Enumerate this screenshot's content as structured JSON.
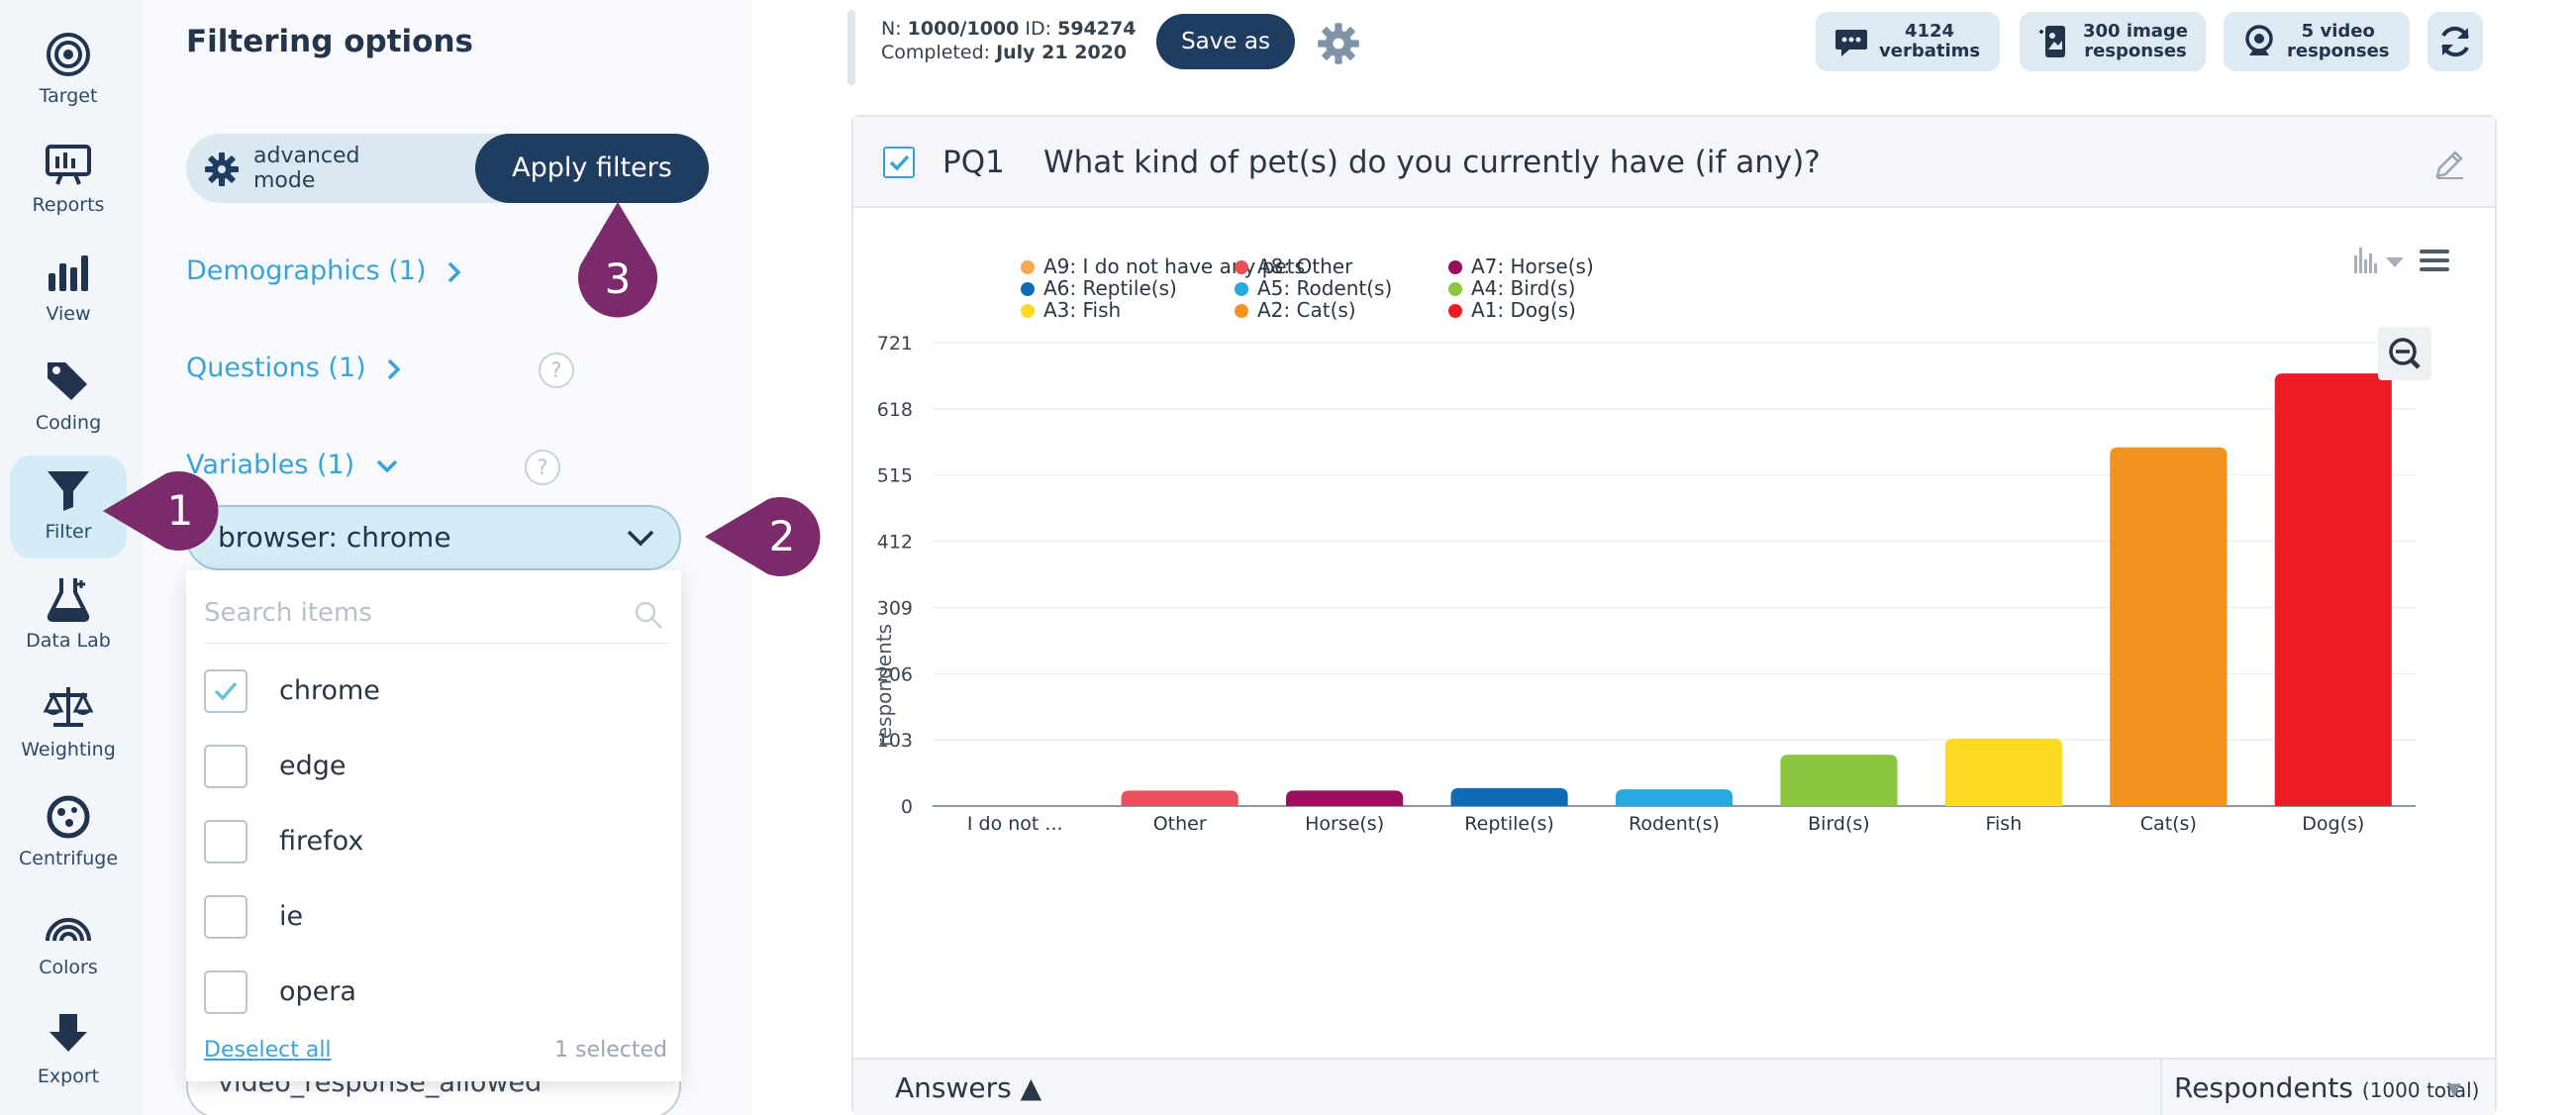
{
  "rail": {
    "items": [
      {
        "label": "Target",
        "icon": "target-icon"
      },
      {
        "label": "Reports",
        "icon": "reports-icon"
      },
      {
        "label": "View",
        "icon": "view-icon"
      },
      {
        "label": "Coding",
        "icon": "coding-icon"
      },
      {
        "label": "Filter",
        "icon": "filter-icon",
        "active": true
      },
      {
        "label": "Data Lab",
        "icon": "data-lab-icon"
      },
      {
        "label": "Weighting",
        "icon": "weighting-icon"
      },
      {
        "label": "Centrifuge",
        "icon": "centrifuge-icon"
      },
      {
        "label": "Colors",
        "icon": "colors-icon"
      },
      {
        "label": "Export",
        "icon": "export-icon"
      }
    ]
  },
  "filter_panel": {
    "title": "Filtering options",
    "mode_label": "advanced mode",
    "apply_label": "Apply filters",
    "sections": [
      {
        "label": "Demographics (1)",
        "chevron": "right"
      },
      {
        "label": "Questions (1)",
        "chevron": "right"
      },
      {
        "label": "Variables (1)",
        "chevron": "down"
      }
    ],
    "help_glyph": "?",
    "variable_select": "browser: chrome",
    "second_variable": "video_response_allowed",
    "dropdown": {
      "search_placeholder": "Search items",
      "items": [
        {
          "label": "chrome",
          "checked": true
        },
        {
          "label": "edge",
          "checked": false
        },
        {
          "label": "firefox",
          "checked": false
        },
        {
          "label": "ie",
          "checked": false
        },
        {
          "label": "opera",
          "checked": false
        }
      ],
      "deselect_label": "Deselect all",
      "selected_count": "1 selected"
    }
  },
  "callouts": [
    "1",
    "2",
    "3"
  ],
  "topbar": {
    "n_label": "N:",
    "n_value": "1000/1000",
    "id_label": "ID:",
    "id_value": "594274",
    "completed_label": "Completed:",
    "completed_value": "July 21 2020",
    "save_as_label": "Save as",
    "pills": [
      {
        "line1": "4124",
        "line2": "verbatims",
        "icon": "speech-bubble-icon"
      },
      {
        "line1": "300 image",
        "line2": "responses",
        "icon": "image-phone-icon"
      },
      {
        "line1": "5 video",
        "line2": "responses",
        "icon": "webcam-icon"
      }
    ]
  },
  "question": {
    "code": "PQ1",
    "text": "What kind of pet(s) do you currently have (if any)?",
    "answers_label": "Answers ▲",
    "respondents_label": "Respondents",
    "respondents_total": "(1000 total)",
    "sort_glyph": "▼"
  },
  "colors": {
    "accent_dark": "#1f3d61",
    "link": "#3aa3d6",
    "callout": "#7b2a6b"
  },
  "chart_data": {
    "type": "bar",
    "ylabel": "respondents",
    "xlabel": "",
    "title": "",
    "ylim": [
      0,
      721
    ],
    "yticks": [
      0,
      103,
      206,
      309,
      412,
      515,
      618,
      721
    ],
    "categories": [
      "I do not ...",
      "Other",
      "Horse(s)",
      "Reptile(s)",
      "Rodent(s)",
      "Bird(s)",
      "Fish",
      "Cat(s)",
      "Dog(s)"
    ],
    "values": [
      0,
      24,
      24,
      28,
      26,
      80,
      105,
      558,
      673
    ],
    "colors": [
      "#f5a952",
      "#e8505b",
      "#9c0f5f",
      "#0f6bb5",
      "#29a8e0",
      "#8cc63f",
      "#fcd925",
      "#f4921f",
      "#ed1c24"
    ],
    "legend_position": "top",
    "legend": [
      {
        "label": "A9: I do not have any pets",
        "color": "#f5a952"
      },
      {
        "label": "A8: Other",
        "color": "#e8505b"
      },
      {
        "label": "A7: Horse(s)",
        "color": "#9c0f5f"
      },
      {
        "label": "A6: Reptile(s)",
        "color": "#0f6bb5"
      },
      {
        "label": "A5: Rodent(s)",
        "color": "#29a8e0"
      },
      {
        "label": "A4: Bird(s)",
        "color": "#8cc63f"
      },
      {
        "label": "A3: Fish",
        "color": "#fcd925"
      },
      {
        "label": "A2: Cat(s)",
        "color": "#f4921f"
      },
      {
        "label": "A1: Dog(s)",
        "color": "#ed1c24"
      }
    ],
    "grid": true
  }
}
